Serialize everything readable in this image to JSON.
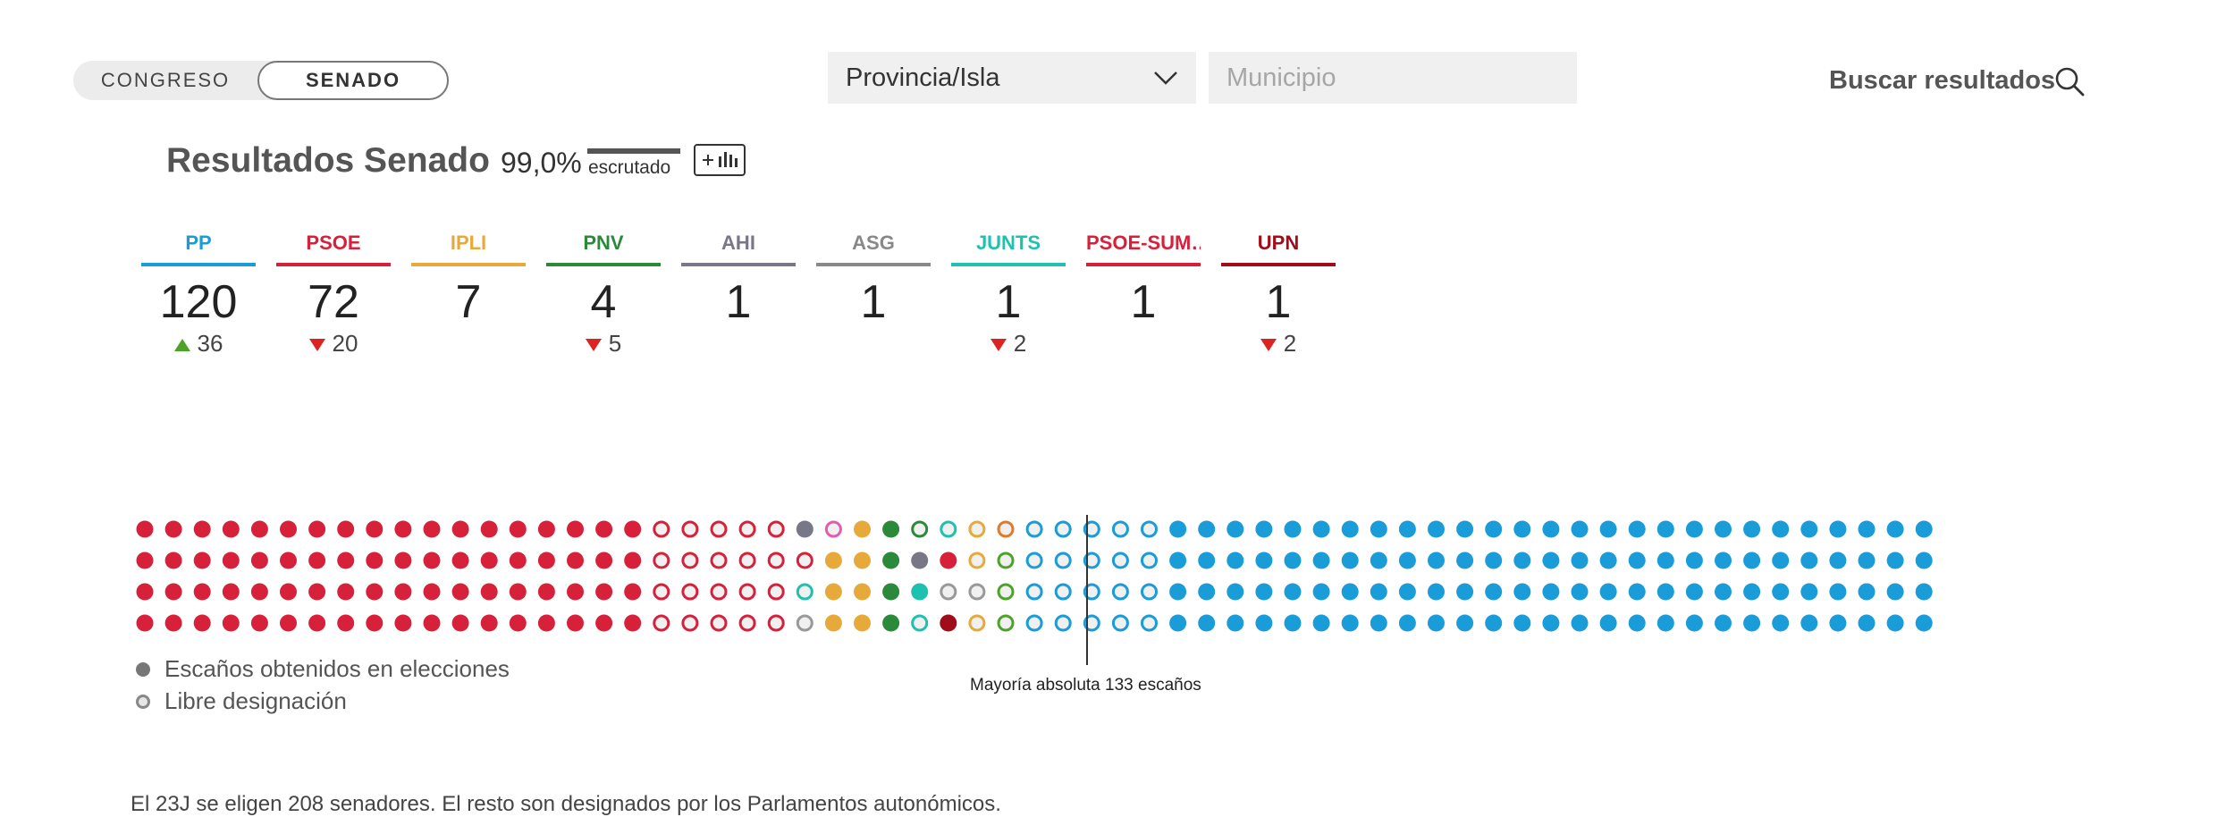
{
  "toggle": {
    "congreso": "CONGRESO",
    "senado": "SENADO"
  },
  "filters": {
    "provincia": "Provincia/Isla",
    "municipio_placeholder": "Municipio"
  },
  "search": {
    "label": "Buscar resultados"
  },
  "header": {
    "title": "Resultados Senado",
    "percent": "99,0%",
    "escrutado": "escrutado"
  },
  "parties": [
    {
      "name": "PP",
      "seats": "120",
      "change": "36",
      "dir": "up",
      "color": "#1a9cd8"
    },
    {
      "name": "PSOE",
      "seats": "72",
      "change": "20",
      "dir": "down",
      "color": "#d7213a"
    },
    {
      "name": "IPLI",
      "seats": "7",
      "change": "",
      "dir": "",
      "color": "#e6a93a"
    },
    {
      "name": "PNV",
      "seats": "4",
      "change": "5",
      "dir": "down",
      "color": "#2a8a3a"
    },
    {
      "name": "AHI",
      "seats": "1",
      "change": "",
      "dir": "",
      "color": "#777788"
    },
    {
      "name": "ASG",
      "seats": "1",
      "change": "",
      "dir": "",
      "color": "#888888"
    },
    {
      "name": "JUNTS",
      "seats": "1",
      "change": "2",
      "dir": "down",
      "color": "#1ec1b0"
    },
    {
      "name": "PSOE-SUM…",
      "seats": "1",
      "change": "",
      "dir": "",
      "color": "#d7213a"
    },
    {
      "name": "UPN",
      "seats": "1",
      "change": "2",
      "dir": "down",
      "color": "#a00d1a"
    }
  ],
  "seat_grid": {
    "rows": 4,
    "columns": [
      {
        "c": "#d7213a",
        "t": "s"
      },
      {
        "c": "#d7213a",
        "t": "s"
      },
      {
        "c": "#d7213a",
        "t": "s"
      },
      {
        "c": "#d7213a",
        "t": "s"
      },
      {
        "c": "#d7213a",
        "t": "s"
      },
      {
        "c": "#d7213a",
        "t": "s"
      },
      {
        "c": "#d7213a",
        "t": "s"
      },
      {
        "c": "#d7213a",
        "t": "s"
      },
      {
        "c": "#d7213a",
        "t": "s"
      },
      {
        "c": "#d7213a",
        "t": "s"
      },
      {
        "c": "#d7213a",
        "t": "s"
      },
      {
        "c": "#d7213a",
        "t": "s"
      },
      {
        "c": "#d7213a",
        "t": "s"
      },
      {
        "c": "#d7213a",
        "t": "s"
      },
      {
        "c": "#d7213a",
        "t": "s"
      },
      {
        "c": "#d7213a",
        "t": "s"
      },
      {
        "c": "#d7213a",
        "t": "s"
      },
      {
        "c": "#d7213a",
        "t": "s"
      },
      {
        "c": "#d7213a",
        "t": "o"
      },
      {
        "c": "#d7213a",
        "t": "o"
      },
      {
        "c": "#d7213a",
        "t": "o"
      },
      {
        "c": "#d7213a",
        "t": "o"
      },
      {
        "c": "#d7213a",
        "t": "o"
      },
      {
        "col": [
          {
            "c": "#777788",
            "t": "s"
          },
          {
            "c": "#d7213a",
            "t": "o"
          },
          {
            "c": "#1ec1b0",
            "t": "o"
          },
          {
            "c": "#999999",
            "t": "o"
          }
        ]
      },
      {
        "col": [
          {
            "c": "#e25bb0",
            "t": "o"
          },
          {
            "c": "#e6a93a",
            "t": "s"
          },
          {
            "c": "#e6a93a",
            "t": "s"
          },
          {
            "c": "#e6a93a",
            "t": "s"
          }
        ]
      },
      {
        "c": "#e6a93a",
        "t": "s"
      },
      {
        "c": "#2a8a3a",
        "t": "s"
      },
      {
        "col": [
          {
            "c": "#2a8a3a",
            "t": "o"
          },
          {
            "c": "#777788",
            "t": "s"
          },
          {
            "c": "#1ec1b0",
            "t": "s"
          },
          {
            "c": "#1ec1b0",
            "t": "o"
          }
        ]
      },
      {
        "col": [
          {
            "c": "#1ec1b0",
            "t": "o"
          },
          {
            "c": "#d7213a",
            "t": "s"
          },
          {
            "c": "#999999",
            "t": "o"
          },
          {
            "c": "#a00d1a",
            "t": "s"
          }
        ]
      },
      {
        "col": [
          {
            "c": "#e6a93a",
            "t": "o"
          },
          {
            "c": "#e6a93a",
            "t": "o"
          },
          {
            "c": "#999999",
            "t": "o"
          },
          {
            "c": "#e6a93a",
            "t": "o"
          }
        ]
      },
      {
        "col": [
          {
            "c": "#e07a2a",
            "t": "o"
          },
          {
            "c": "#4ca32a",
            "t": "o"
          },
          {
            "c": "#4ca32a",
            "t": "o"
          },
          {
            "c": "#4ca32a",
            "t": "o"
          }
        ]
      },
      {
        "c": "#1a9cd8",
        "t": "o"
      },
      {
        "c": "#1a9cd8",
        "t": "o"
      },
      {
        "c": "#1a9cd8",
        "t": "o"
      },
      {
        "c": "#1a9cd8",
        "t": "o"
      },
      {
        "c": "#1a9cd8",
        "t": "o"
      },
      {
        "c": "#1a9cd8",
        "t": "s"
      },
      {
        "c": "#1a9cd8",
        "t": "s"
      },
      {
        "c": "#1a9cd8",
        "t": "s"
      },
      {
        "c": "#1a9cd8",
        "t": "s"
      },
      {
        "c": "#1a9cd8",
        "t": "s"
      },
      {
        "c": "#1a9cd8",
        "t": "s"
      },
      {
        "c": "#1a9cd8",
        "t": "s"
      },
      {
        "c": "#1a9cd8",
        "t": "s"
      },
      {
        "c": "#1a9cd8",
        "t": "s"
      },
      {
        "c": "#1a9cd8",
        "t": "s"
      },
      {
        "c": "#1a9cd8",
        "t": "s"
      },
      {
        "c": "#1a9cd8",
        "t": "s"
      },
      {
        "c": "#1a9cd8",
        "t": "s"
      },
      {
        "c": "#1a9cd8",
        "t": "s"
      },
      {
        "c": "#1a9cd8",
        "t": "s"
      },
      {
        "c": "#1a9cd8",
        "t": "s"
      },
      {
        "c": "#1a9cd8",
        "t": "s"
      },
      {
        "c": "#1a9cd8",
        "t": "s"
      },
      {
        "c": "#1a9cd8",
        "t": "s"
      },
      {
        "c": "#1a9cd8",
        "t": "s"
      },
      {
        "c": "#1a9cd8",
        "t": "s"
      },
      {
        "c": "#1a9cd8",
        "t": "s"
      },
      {
        "c": "#1a9cd8",
        "t": "s"
      },
      {
        "c": "#1a9cd8",
        "t": "s"
      },
      {
        "c": "#1a9cd8",
        "t": "s"
      },
      {
        "c": "#1a9cd8",
        "t": "s"
      },
      {
        "c": "#1a9cd8",
        "t": "s"
      }
    ]
  },
  "majority_label": "Mayoría absoluta 133 escaños",
  "legend": {
    "obtained": "Escaños obtenidos en elecciones",
    "designated": "Libre designación"
  },
  "footer": "El 23J se eligen 208 senadores. El resto son designados por los Parlamentos autonómicos."
}
